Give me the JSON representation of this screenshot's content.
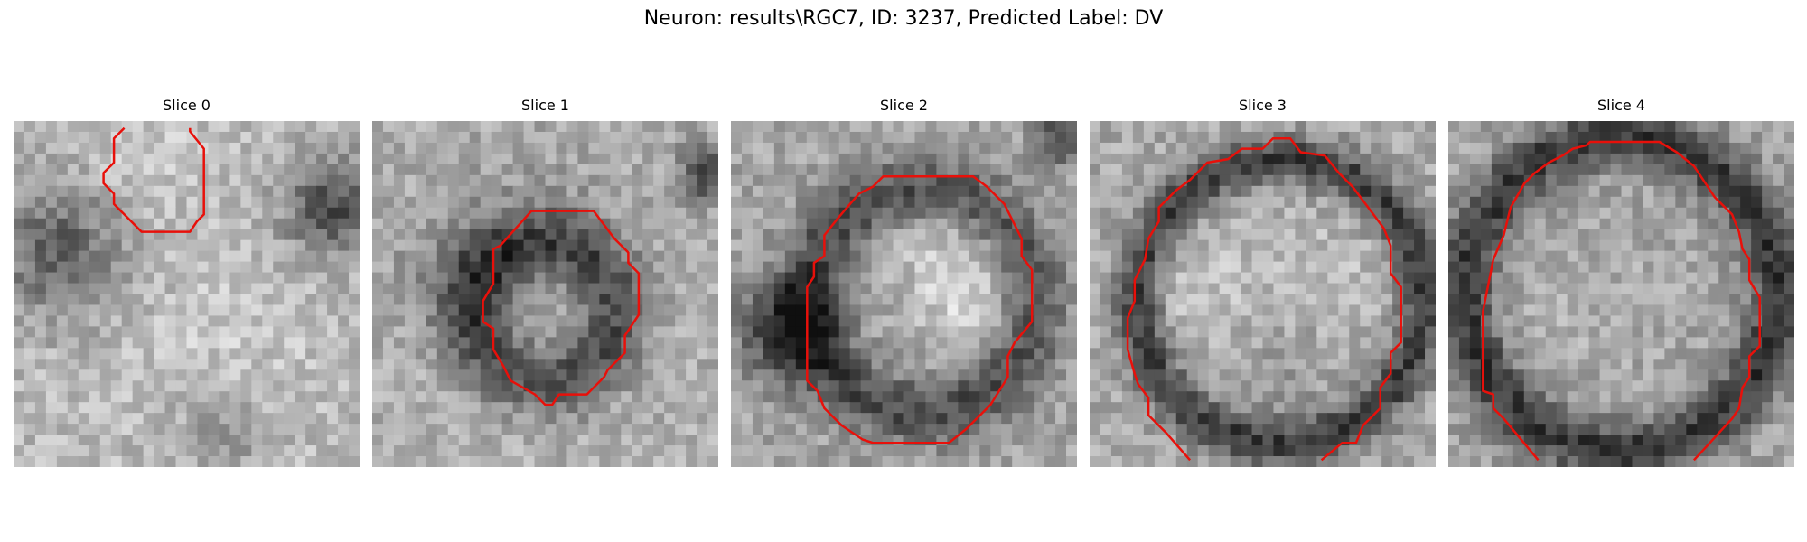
{
  "figure": {
    "title": "Neuron: results\\RGC7, ID: 3237, Predicted Label: DV"
  },
  "panels": [
    {
      "title": "Slice 0"
    },
    {
      "title": "Slice 1"
    },
    {
      "title": "Slice 2"
    },
    {
      "title": "Slice 3"
    },
    {
      "title": "Slice 4"
    }
  ],
  "colors": {
    "contour": "#e8100a",
    "background": "#ffffff",
    "colormap": "grayscale"
  }
}
